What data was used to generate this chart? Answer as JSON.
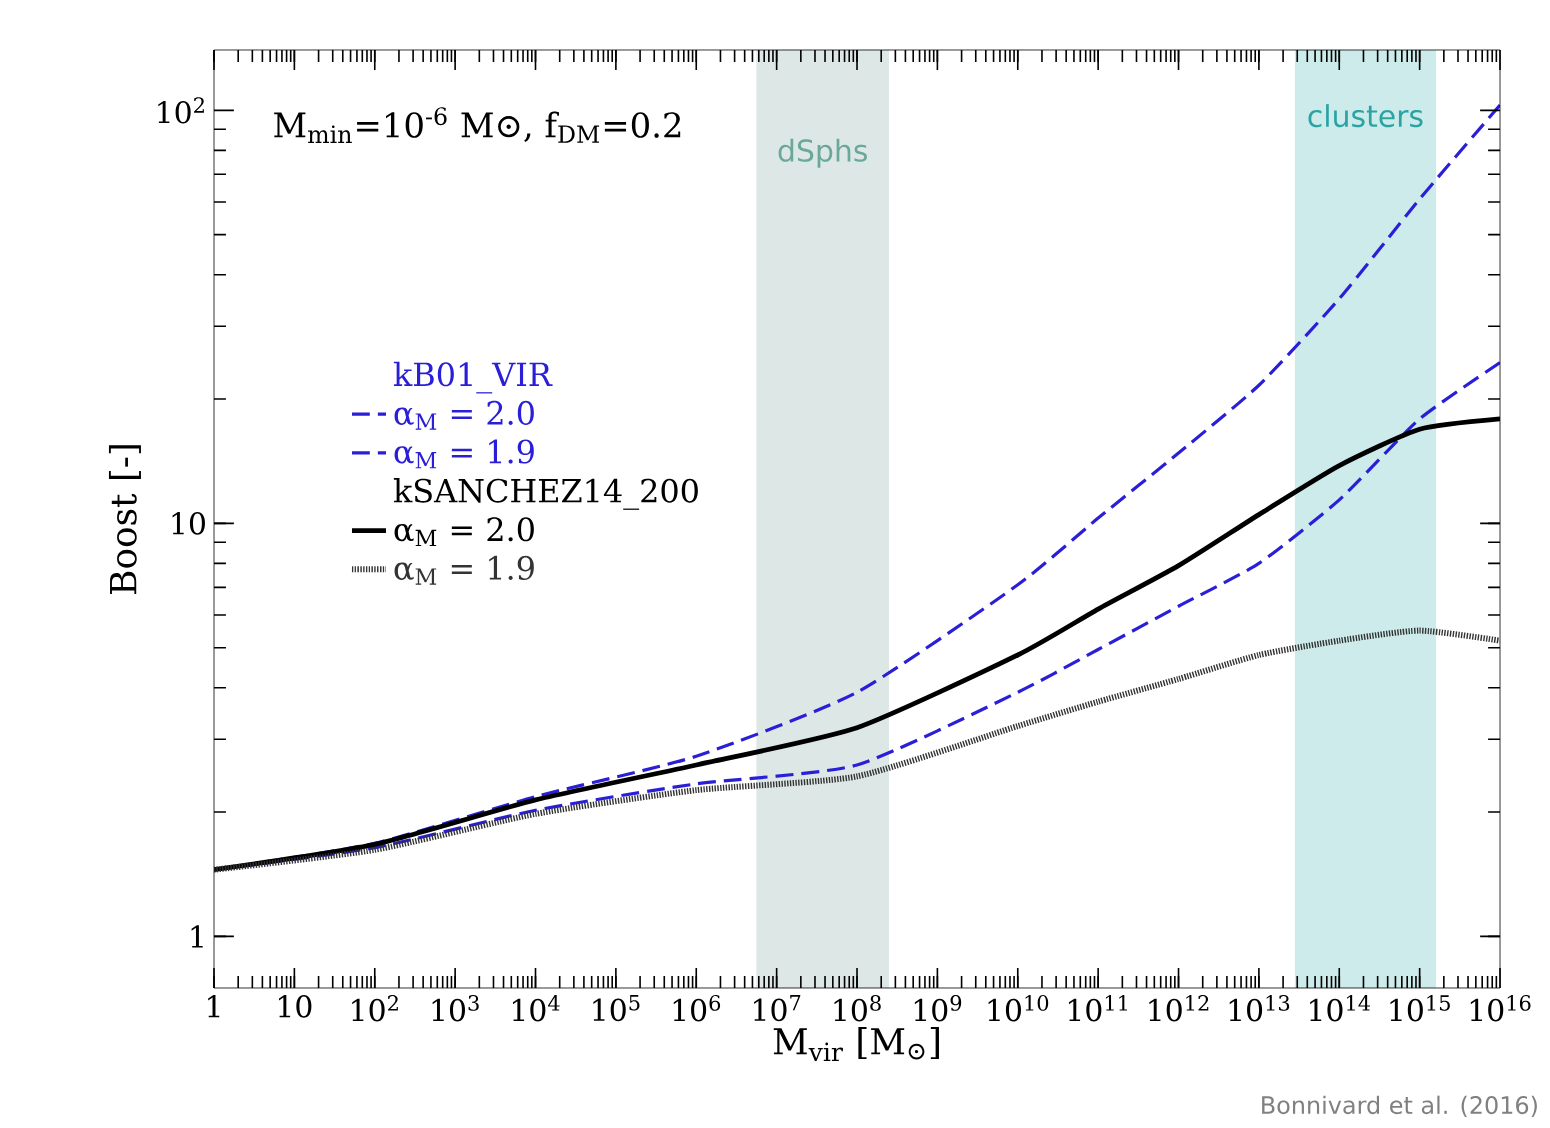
{
  "chart_data": {
    "type": "line",
    "xlabel": "M$_{vir}$  [M$_{⊙}$]",
    "ylabel": "Boost  [-]",
    "log": "xy",
    "legend": "left",
    "xlim": [
      1,
      1e+16
    ],
    "ylim": [
      0.75,
      140
    ],
    "xticks": [
      1,
      10,
      {
        "value": 100.0,
        "label": "10$^{2}$"
      },
      {
        "value": 1000.0,
        "label": "10$^{3}$"
      },
      {
        "value": 10000.0,
        "label": "10$^{4}$"
      },
      {
        "value": 100000.0,
        "label": "10$^{5}$"
      },
      {
        "value": 1000000.0,
        "label": "10$^{6}$"
      },
      {
        "value": 10000000.0,
        "label": "10$^{7}$"
      },
      {
        "value": 100000000.0,
        "label": "10$^{8}$"
      },
      {
        "value": 1000000000.0,
        "label": "10$^{9}$"
      },
      {
        "value": 10000000000.0,
        "label": "10$^{10}$"
      },
      {
        "value": 100000000000.0,
        "label": "10$^{11}$"
      },
      {
        "value": 1000000000000.0,
        "label": "10$^{12}$"
      },
      {
        "value": 10000000000000.0,
        "label": "10$^{13}$"
      },
      {
        "value": 100000000000000.0,
        "label": "10$^{14}$"
      },
      {
        "value": 1000000000000000.0,
        "label": "10$^{15}$"
      },
      {
        "value": 1e+16,
        "label": "10$^{16}$"
      }
    ],
    "yticks": [
      1,
      10,
      {
        "value": 100,
        "label": "10$^{2}$"
      }
    ],
    "x": [
      1,
      100.0,
      10000.0,
      1000000.0,
      100000000.0,
      10000000000.0,
      100000000000.0,
      1000000000000.0,
      10000000000000.0,
      100000000000000.0,
      1000000000000000.0,
      1e+16
    ],
    "series": [
      {
        "name": "α$_{M}$ = 2.0",
        "color": "#2a1fd6",
        "line_style": "dashed",
        "values": [
          1.45,
          1.68,
          2.18,
          2.73,
          3.9,
          7.1,
          10.3,
          14.8,
          21.6,
          35,
          61,
          103
        ]
      },
      {
        "name": "α$_{M}$ = 1.9",
        "color": "#2a1fd6",
        "line_style": "dashed",
        "values": [
          1.45,
          1.64,
          2.02,
          2.34,
          2.6,
          3.9,
          4.95,
          6.3,
          8.0,
          11.4,
          17.9,
          24.5
        ]
      },
      {
        "name": "α$_{M}$ = 2.0",
        "color": "#000000",
        "line_style": "solid",
        "values": [
          1.45,
          1.67,
          2.14,
          2.6,
          3.2,
          4.8,
          6.2,
          7.9,
          10.5,
          13.8,
          16.9,
          17.9
        ]
      },
      {
        "name": "α$_{M}$ = 1.9",
        "color": "#333333",
        "line_style": "dotted",
        "values": [
          1.45,
          1.62,
          1.98,
          2.26,
          2.44,
          3.23,
          3.7,
          4.2,
          4.8,
          5.2,
          5.5,
          5.2
        ]
      }
    ],
    "bands": [
      {
        "axis": "x",
        "from": 5600000.0,
        "to": 250000000.0,
        "label": "dSphs",
        "color": "#dde7e5"
      },
      {
        "axis": "x",
        "from": 28000000000000.0,
        "to": 1600000000000000.0,
        "label": "clusters",
        "color": "#cdebeb"
      }
    ],
    "annotations": [
      "M$_{min}$=10$^{-6}$ M⊙, f$_{DM}$=0.2",
      "kB01_VIR",
      "kSANCHEZ14_200",
      "Bonnivard et al. (2016)"
    ]
  }
}
